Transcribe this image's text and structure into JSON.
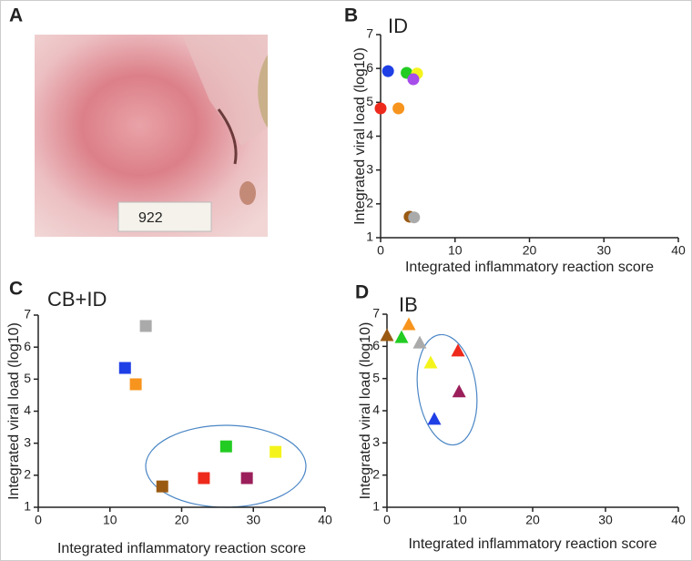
{
  "figure": {
    "panel_label": "A",
    "photo_text": "922"
  },
  "chart_data": [
    {
      "type": "scatter",
      "panel": "B",
      "title": "ID",
      "marker": "circle",
      "x_label": "Integrated inflammatory reaction score",
      "y_label": "Integrated viral load (log10)",
      "x": [
        1.0,
        0,
        2.4,
        3.5,
        4.9,
        4.4,
        3.9,
        4.5
      ],
      "y": [
        5.92,
        4.82,
        4.82,
        5.87,
        5.85,
        5.68,
        1.62,
        1.6
      ],
      "colors": [
        "#1f3fe6",
        "#ee2a1c",
        "#f7941d",
        "#22cc22",
        "#f4f41c",
        "#a64dea",
        "#9a5a12",
        "#aaaaaa"
      ],
      "xlim": [
        0,
        40
      ],
      "ylim": [
        1,
        7
      ],
      "xticks": [
        0,
        10,
        20,
        30,
        40
      ],
      "yticks": [
        1,
        2,
        3,
        4,
        5,
        6,
        7
      ]
    },
    {
      "type": "scatter",
      "panel": "C",
      "title": "CB+ID",
      "marker": "square",
      "x_label": "Integrated inflammatory reaction score",
      "y_label": "Integrated viral load (log10)",
      "x": [
        15.0,
        12.1,
        13.6,
        17.3,
        23.1,
        26.2,
        29.1,
        33.1
      ],
      "y": [
        6.66,
        5.35,
        4.84,
        1.65,
        1.91,
        2.9,
        1.91,
        2.73
      ],
      "colors": [
        "#aaaaaa",
        "#1f3fe6",
        "#f7941d",
        "#9a5a12",
        "#ee2a1c",
        "#22cc22",
        "#9b1f5a",
        "#f4f41c"
      ],
      "xlim": [
        0,
        40
      ],
      "ylim": [
        1,
        7
      ],
      "xticks": [
        0,
        10,
        20,
        30,
        40
      ],
      "yticks": [
        1,
        2,
        3,
        4,
        5,
        6,
        7
      ]
    },
    {
      "type": "scatter",
      "panel": "D",
      "title": "IB",
      "marker": "triangle",
      "x_label": "Integrated inflammatory reaction score",
      "y_label": "Integrated viral load (log10)",
      "x": [
        0,
        2.0,
        3.0,
        4.5,
        6.0,
        9.75,
        9.9,
        6.5
      ],
      "y": [
        6.35,
        6.29,
        6.69,
        6.12,
        5.5,
        5.87,
        4.6,
        3.75
      ],
      "colors": [
        "#9a5a12",
        "#22cc22",
        "#f7941d",
        "#aaaaaa",
        "#f4f41c",
        "#ee2a1c",
        "#9b1f5a",
        "#1f3fe6"
      ],
      "xlim": [
        0,
        40
      ],
      "ylim": [
        1,
        7
      ],
      "xticks": [
        0,
        10,
        20,
        30,
        40
      ],
      "yticks": [
        1,
        2,
        3,
        4,
        5,
        6,
        7
      ]
    }
  ]
}
